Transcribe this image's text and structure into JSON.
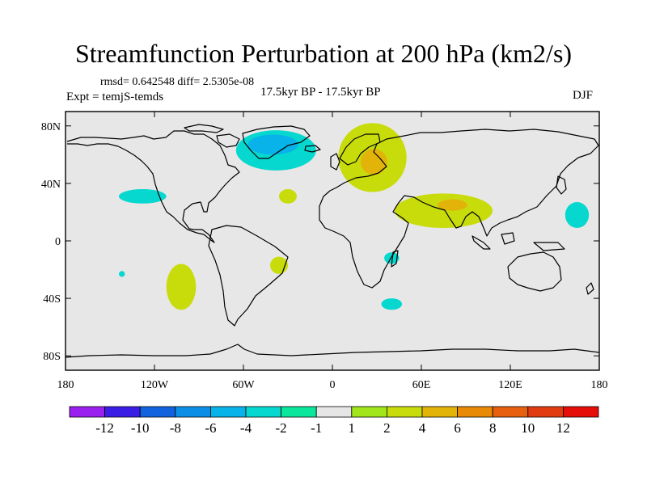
{
  "chart_data": {
    "type": "heatmap",
    "title": "Streamfunction Perturbation at 200 hPa (km2/s)",
    "stats_line": "rmsd= 0.642548 diff= 2.5305e-08",
    "left_label": "Expt = temjS-temds",
    "center_label": "17.5kyr BP - 17.5kyr BP",
    "right_label": "DJF",
    "x_ticks": [
      "180",
      "120W",
      "60W",
      "0",
      "60E",
      "120E",
      "180"
    ],
    "y_ticks": [
      "80N",
      "40N",
      "0",
      "40S",
      "80S"
    ],
    "xlim": [
      -180,
      180
    ],
    "ylim": [
      -90,
      90
    ],
    "colorbar": {
      "labels": [
        "-12",
        "-10",
        "-8",
        "-6",
        "-4",
        "-2",
        "-1",
        "1",
        "2",
        "4",
        "6",
        "8",
        "10",
        "12"
      ],
      "colors": [
        "#9a20f0",
        "#3b1ee6",
        "#1262e0",
        "#0d8ee6",
        "#07b3e8",
        "#06d8cf",
        "#0ae69c",
        "#e6e6e6",
        "#a0e61a",
        "#c8dc0c",
        "#e2b40a",
        "#e88a06",
        "#e66010",
        "#e03c10",
        "#e60e08"
      ]
    },
    "anomalies": [
      {
        "lon": -38,
        "lat": 63,
        "rlon": 27,
        "rlat": 14,
        "level": "-2"
      },
      {
        "lon": -40,
        "lat": 67,
        "rlon": 17,
        "rlat": 7,
        "level": "-4"
      },
      {
        "lon": 27,
        "lat": 58,
        "rlon": 23,
        "rlat": 24,
        "level": "2"
      },
      {
        "lon": 28,
        "lat": 55,
        "rlon": 9,
        "rlat": 9,
        "level": "4"
      },
      {
        "lon": -128,
        "lat": 31,
        "rlon": 16,
        "rlat": 5,
        "level": "-2"
      },
      {
        "lon": -30,
        "lat": 31,
        "rlon": 6,
        "rlat": 5,
        "level": "2"
      },
      {
        "lon": 75,
        "lat": 21,
        "rlon": 33,
        "rlat": 12,
        "level": "2"
      },
      {
        "lon": 81,
        "lat": 25,
        "rlon": 10,
        "rlat": 4,
        "level": "4"
      },
      {
        "lon": 165,
        "lat": 18,
        "rlon": 8,
        "rlat": 9,
        "level": "-2"
      },
      {
        "lon": -102,
        "lat": -32,
        "rlon": 10,
        "rlat": 16,
        "level": "2"
      },
      {
        "lon": -36,
        "lat": -17,
        "rlon": 6,
        "rlat": 6,
        "level": "2"
      },
      {
        "lon": -142,
        "lat": -23,
        "rlon": 2,
        "rlat": 2,
        "level": "-2"
      },
      {
        "lon": 40,
        "lat": -12,
        "rlon": 5,
        "rlat": 4,
        "level": "-2"
      },
      {
        "lon": 40,
        "lat": -44,
        "rlon": 7,
        "rlat": 4,
        "level": "-2"
      }
    ]
  }
}
